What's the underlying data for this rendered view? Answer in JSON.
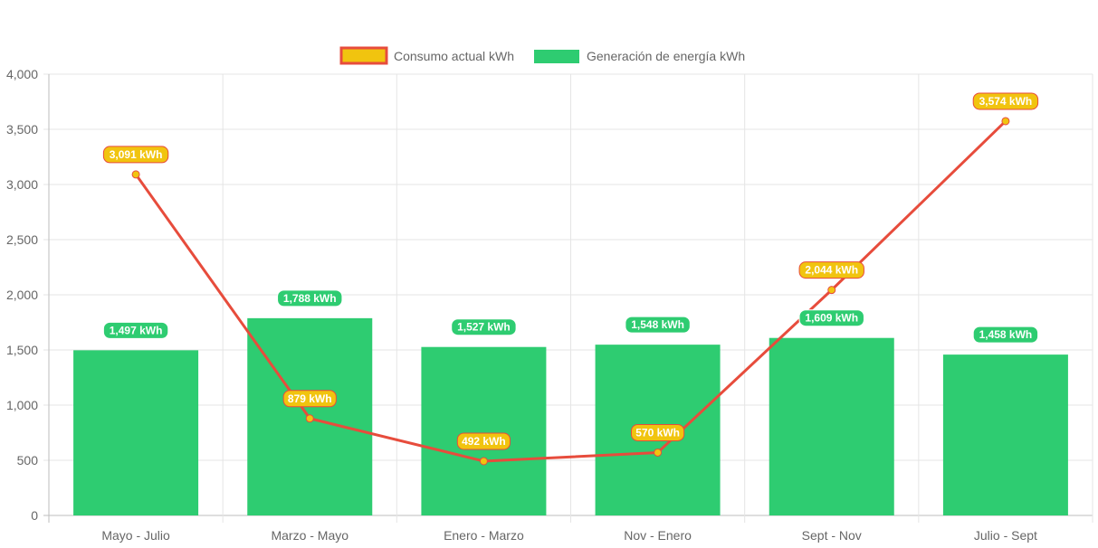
{
  "chart_data": {
    "type": "bar",
    "categories": [
      "Mayo - Julio",
      "Marzo - Mayo",
      "Enero - Marzo",
      "Nov - Enero",
      "Sept - Nov",
      "Julio - Sept"
    ],
    "ylim": [
      0,
      4000
    ],
    "yticks": [
      0,
      500,
      1000,
      1500,
      2000,
      2500,
      3000,
      3500,
      4000
    ],
    "ytick_labels": [
      "0",
      "500",
      "1,000",
      "1,500",
      "2,000",
      "2,500",
      "3,000",
      "3,500",
      "4,000"
    ],
    "grid": true,
    "legend_position": "top",
    "series": [
      {
        "name": "Consumo actual kWh",
        "type": "line",
        "values": [
          3091,
          879,
          492,
          570,
          2044,
          3574
        ],
        "labels": [
          "3,091 kWh",
          "879 kWh",
          "492 kWh",
          "570 kWh",
          "2,044 kWh",
          "3,574 kWh"
        ],
        "color": "#e74c3c",
        "fill": "#f1c40f"
      },
      {
        "name": "Generación de energía kWh",
        "type": "bar",
        "values": [
          1497,
          1788,
          1527,
          1548,
          1609,
          1458
        ],
        "labels": [
          "1,497 kWh",
          "1,788 kWh",
          "1,527 kWh",
          "1,548 kWh",
          "1,609 kWh",
          "1,458 kWh"
        ],
        "color": "#2ecc71"
      }
    ]
  }
}
